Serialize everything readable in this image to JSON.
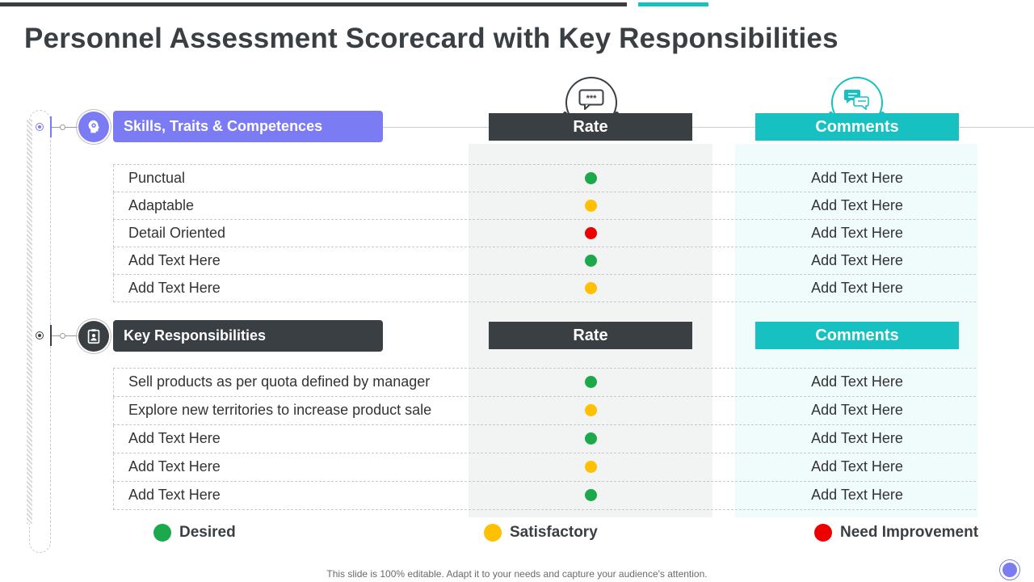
{
  "title": "Personnel Assessment Scorecard with Key Responsibilities",
  "colors": {
    "desired": "#1ba94c",
    "satisfactory": "#ffc000",
    "need_improvement": "#ee0000",
    "purple": "#7b7cf4",
    "dark": "#3a3f44",
    "teal": "#17c1c1"
  },
  "section1": {
    "label": "Skills, Traits & Competences",
    "icon": "gear-head-icon",
    "rate_header": "Rate",
    "comments_header": "Comments",
    "rows": [
      {
        "label": "Punctual",
        "status": "desired",
        "comment": "Add Text Here"
      },
      {
        "label": "Adaptable",
        "status": "satisfactory",
        "comment": "Add Text Here"
      },
      {
        "label": "Detail Oriented",
        "status": "need_improvement",
        "comment": "Add Text Here"
      },
      {
        "label": "Add Text Here",
        "status": "desired",
        "comment": "Add Text Here"
      },
      {
        "label": "Add Text Here",
        "status": "satisfactory",
        "comment": "Add Text Here"
      }
    ]
  },
  "section2": {
    "label": "Key Responsibilities",
    "icon": "clipboard-person-icon",
    "rate_header": "Rate",
    "comments_header": "Comments",
    "rows": [
      {
        "label": "Sell products as per quota defined by manager",
        "status": "desired",
        "comment": "Add Text Here"
      },
      {
        "label": "Explore new territories to increase product sale",
        "status": "satisfactory",
        "comment": "Add Text Here"
      },
      {
        "label": "Add Text Here",
        "status": "desired",
        "comment": "Add Text Here"
      },
      {
        "label": "Add Text Here",
        "status": "satisfactory",
        "comment": "Add Text Here"
      },
      {
        "label": "Add Text Here",
        "status": "desired",
        "comment": "Add Text Here"
      }
    ]
  },
  "legend": {
    "desired": "Desired",
    "satisfactory": "Satisfactory",
    "need_improvement": "Need Improvement"
  },
  "footer": "This slide is 100% editable. Adapt it to your needs and capture your audience's attention."
}
